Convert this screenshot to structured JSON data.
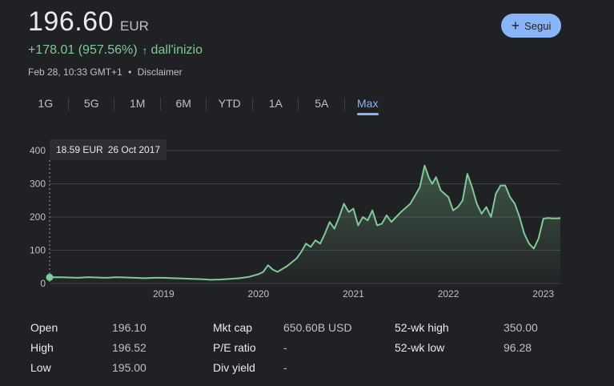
{
  "quote": {
    "price": "196.60",
    "currency": "EUR",
    "change": "+178.01 (957.56%)",
    "change_arrow": "↑",
    "change_period": "dall'inizio",
    "timestamp": "Feb 28, 10:33 GMT+1",
    "separator": "•",
    "disclaimer": "Disclaimer",
    "accent_up": "#81c995"
  },
  "follow_button": {
    "icon": "plus-icon",
    "label": "Segui"
  },
  "tabs": [
    {
      "label": "1G",
      "active": false
    },
    {
      "label": "5G",
      "active": false
    },
    {
      "label": "1M",
      "active": false
    },
    {
      "label": "6M",
      "active": false
    },
    {
      "label": "YTD",
      "active": false
    },
    {
      "label": "1A",
      "active": false
    },
    {
      "label": "5A",
      "active": false
    },
    {
      "label": "Max",
      "active": true
    }
  ],
  "tooltip": {
    "value": "18.59 EUR",
    "date": "26 Oct 2017"
  },
  "chart_data": {
    "type": "area",
    "title": "",
    "xlabel": "",
    "ylabel": "",
    "ylim": [
      0,
      400
    ],
    "xlim": [
      2017.8,
      2023.18
    ],
    "yticks": [
      "0",
      "100",
      "200",
      "300",
      "400"
    ],
    "yticks_values": [
      0,
      100,
      200,
      300,
      400
    ],
    "xticks": [
      "2019",
      "2020",
      "2021",
      "2022",
      "2023"
    ],
    "xticks_values": [
      2019.0,
      2020.0,
      2021.0,
      2022.0,
      2023.0
    ],
    "grid": true,
    "line_color": "#81c995",
    "series": [
      {
        "x": [
          2017.8,
          2017.9,
          2018.0,
          2018.1,
          2018.2,
          2018.3,
          2018.4,
          2018.5,
          2018.6,
          2018.7,
          2018.8,
          2018.9,
          2019.0,
          2019.1,
          2019.2,
          2019.3,
          2019.4,
          2019.5,
          2019.6,
          2019.7,
          2019.8,
          2019.9,
          2020.0,
          2020.05,
          2020.1,
          2020.15,
          2020.2,
          2020.3,
          2020.4,
          2020.45,
          2020.5,
          2020.55,
          2020.6,
          2020.65,
          2020.7,
          2020.75,
          2020.8,
          2020.85,
          2020.9,
          2020.95,
          2021.0,
          2021.05,
          2021.1,
          2021.15,
          2021.2,
          2021.25,
          2021.3,
          2021.35,
          2021.4,
          2021.45,
          2021.5,
          2021.6,
          2021.7,
          2021.75,
          2021.8,
          2021.83,
          2021.87,
          2021.92,
          2022.0,
          2022.05,
          2022.1,
          2022.15,
          2022.2,
          2022.25,
          2022.3,
          2022.35,
          2022.4,
          2022.45,
          2022.5,
          2022.55,
          2022.6,
          2022.65,
          2022.7,
          2022.75,
          2022.8,
          2022.85,
          2022.9,
          2022.95,
          2023.0,
          2023.05,
          2023.1,
          2023.15,
          2023.18
        ],
        "y": [
          18.6,
          19,
          18,
          17,
          19,
          18,
          17,
          19,
          18,
          17,
          16,
          17,
          17,
          16,
          15,
          14,
          13,
          11,
          12,
          14,
          16,
          20,
          28,
          35,
          55,
          42,
          35,
          52,
          75,
          95,
          120,
          110,
          130,
          120,
          150,
          185,
          165,
          200,
          240,
          215,
          225,
          175,
          200,
          190,
          220,
          175,
          180,
          205,
          185,
          200,
          215,
          240,
          290,
          355,
          315,
          300,
          320,
          280,
          260,
          220,
          230,
          250,
          330,
          290,
          240,
          210,
          230,
          200,
          270,
          295,
          295,
          260,
          240,
          200,
          150,
          120,
          105,
          135,
          195,
          197,
          196,
          196,
          196.6
        ]
      }
    ]
  },
  "stats": {
    "col1": [
      {
        "label": "Open",
        "value": "196.10"
      },
      {
        "label": "High",
        "value": "196.52"
      },
      {
        "label": "Low",
        "value": "195.00"
      }
    ],
    "col2": [
      {
        "label": "Mkt cap",
        "value": "650.60B USD"
      },
      {
        "label": "P/E ratio",
        "value": "-"
      },
      {
        "label": "Div yield",
        "value": "-"
      }
    ],
    "col3": [
      {
        "label": "52-wk high",
        "value": "350.00"
      },
      {
        "label": "52-wk low",
        "value": "96.28"
      }
    ]
  }
}
